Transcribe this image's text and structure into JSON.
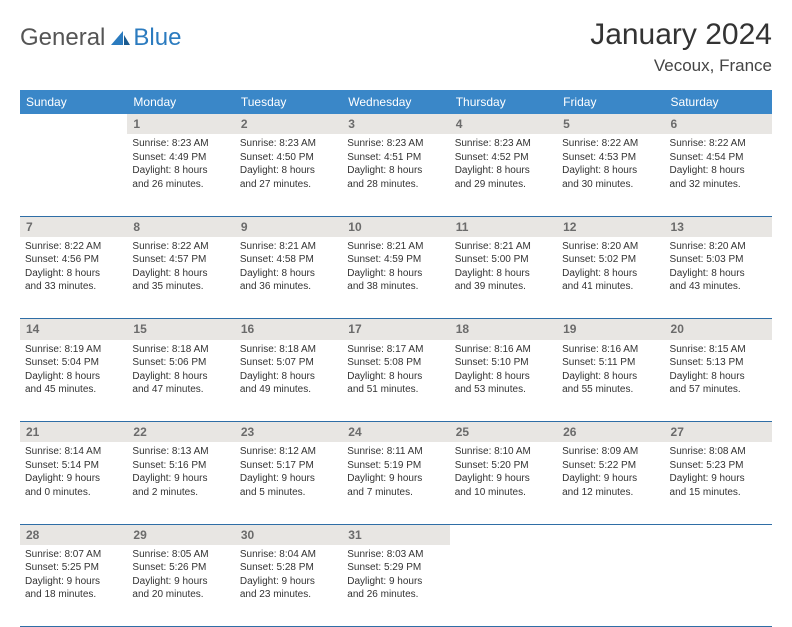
{
  "brand": {
    "part1": "General",
    "part2": "Blue"
  },
  "title": "January 2024",
  "location": "Vecoux, France",
  "colors": {
    "header_bg": "#3a87c8",
    "header_text": "#ffffff",
    "daynum_bg": "#e8e6e3",
    "daynum_text": "#6b6b6b",
    "rule": "#2f6ea6",
    "brand_blue": "#2b7bbf",
    "body_text": "#333333"
  },
  "weekdays": [
    "Sunday",
    "Monday",
    "Tuesday",
    "Wednesday",
    "Thursday",
    "Friday",
    "Saturday"
  ],
  "weeks": [
    {
      "nums": [
        "",
        "1",
        "2",
        "3",
        "4",
        "5",
        "6"
      ],
      "cells": [
        null,
        {
          "sr": "Sunrise: 8:23 AM",
          "ss": "Sunset: 4:49 PM",
          "d1": "Daylight: 8 hours",
          "d2": "and 26 minutes."
        },
        {
          "sr": "Sunrise: 8:23 AM",
          "ss": "Sunset: 4:50 PM",
          "d1": "Daylight: 8 hours",
          "d2": "and 27 minutes."
        },
        {
          "sr": "Sunrise: 8:23 AM",
          "ss": "Sunset: 4:51 PM",
          "d1": "Daylight: 8 hours",
          "d2": "and 28 minutes."
        },
        {
          "sr": "Sunrise: 8:23 AM",
          "ss": "Sunset: 4:52 PM",
          "d1": "Daylight: 8 hours",
          "d2": "and 29 minutes."
        },
        {
          "sr": "Sunrise: 8:22 AM",
          "ss": "Sunset: 4:53 PM",
          "d1": "Daylight: 8 hours",
          "d2": "and 30 minutes."
        },
        {
          "sr": "Sunrise: 8:22 AM",
          "ss": "Sunset: 4:54 PM",
          "d1": "Daylight: 8 hours",
          "d2": "and 32 minutes."
        }
      ]
    },
    {
      "nums": [
        "7",
        "8",
        "9",
        "10",
        "11",
        "12",
        "13"
      ],
      "cells": [
        {
          "sr": "Sunrise: 8:22 AM",
          "ss": "Sunset: 4:56 PM",
          "d1": "Daylight: 8 hours",
          "d2": "and 33 minutes."
        },
        {
          "sr": "Sunrise: 8:22 AM",
          "ss": "Sunset: 4:57 PM",
          "d1": "Daylight: 8 hours",
          "d2": "and 35 minutes."
        },
        {
          "sr": "Sunrise: 8:21 AM",
          "ss": "Sunset: 4:58 PM",
          "d1": "Daylight: 8 hours",
          "d2": "and 36 minutes."
        },
        {
          "sr": "Sunrise: 8:21 AM",
          "ss": "Sunset: 4:59 PM",
          "d1": "Daylight: 8 hours",
          "d2": "and 38 minutes."
        },
        {
          "sr": "Sunrise: 8:21 AM",
          "ss": "Sunset: 5:00 PM",
          "d1": "Daylight: 8 hours",
          "d2": "and 39 minutes."
        },
        {
          "sr": "Sunrise: 8:20 AM",
          "ss": "Sunset: 5:02 PM",
          "d1": "Daylight: 8 hours",
          "d2": "and 41 minutes."
        },
        {
          "sr": "Sunrise: 8:20 AM",
          "ss": "Sunset: 5:03 PM",
          "d1": "Daylight: 8 hours",
          "d2": "and 43 minutes."
        }
      ]
    },
    {
      "nums": [
        "14",
        "15",
        "16",
        "17",
        "18",
        "19",
        "20"
      ],
      "cells": [
        {
          "sr": "Sunrise: 8:19 AM",
          "ss": "Sunset: 5:04 PM",
          "d1": "Daylight: 8 hours",
          "d2": "and 45 minutes."
        },
        {
          "sr": "Sunrise: 8:18 AM",
          "ss": "Sunset: 5:06 PM",
          "d1": "Daylight: 8 hours",
          "d2": "and 47 minutes."
        },
        {
          "sr": "Sunrise: 8:18 AM",
          "ss": "Sunset: 5:07 PM",
          "d1": "Daylight: 8 hours",
          "d2": "and 49 minutes."
        },
        {
          "sr": "Sunrise: 8:17 AM",
          "ss": "Sunset: 5:08 PM",
          "d1": "Daylight: 8 hours",
          "d2": "and 51 minutes."
        },
        {
          "sr": "Sunrise: 8:16 AM",
          "ss": "Sunset: 5:10 PM",
          "d1": "Daylight: 8 hours",
          "d2": "and 53 minutes."
        },
        {
          "sr": "Sunrise: 8:16 AM",
          "ss": "Sunset: 5:11 PM",
          "d1": "Daylight: 8 hours",
          "d2": "and 55 minutes."
        },
        {
          "sr": "Sunrise: 8:15 AM",
          "ss": "Sunset: 5:13 PM",
          "d1": "Daylight: 8 hours",
          "d2": "and 57 minutes."
        }
      ]
    },
    {
      "nums": [
        "21",
        "22",
        "23",
        "24",
        "25",
        "26",
        "27"
      ],
      "cells": [
        {
          "sr": "Sunrise: 8:14 AM",
          "ss": "Sunset: 5:14 PM",
          "d1": "Daylight: 9 hours",
          "d2": "and 0 minutes."
        },
        {
          "sr": "Sunrise: 8:13 AM",
          "ss": "Sunset: 5:16 PM",
          "d1": "Daylight: 9 hours",
          "d2": "and 2 minutes."
        },
        {
          "sr": "Sunrise: 8:12 AM",
          "ss": "Sunset: 5:17 PM",
          "d1": "Daylight: 9 hours",
          "d2": "and 5 minutes."
        },
        {
          "sr": "Sunrise: 8:11 AM",
          "ss": "Sunset: 5:19 PM",
          "d1": "Daylight: 9 hours",
          "d2": "and 7 minutes."
        },
        {
          "sr": "Sunrise: 8:10 AM",
          "ss": "Sunset: 5:20 PM",
          "d1": "Daylight: 9 hours",
          "d2": "and 10 minutes."
        },
        {
          "sr": "Sunrise: 8:09 AM",
          "ss": "Sunset: 5:22 PM",
          "d1": "Daylight: 9 hours",
          "d2": "and 12 minutes."
        },
        {
          "sr": "Sunrise: 8:08 AM",
          "ss": "Sunset: 5:23 PM",
          "d1": "Daylight: 9 hours",
          "d2": "and 15 minutes."
        }
      ]
    },
    {
      "nums": [
        "28",
        "29",
        "30",
        "31",
        "",
        "",
        ""
      ],
      "cells": [
        {
          "sr": "Sunrise: 8:07 AM",
          "ss": "Sunset: 5:25 PM",
          "d1": "Daylight: 9 hours",
          "d2": "and 18 minutes."
        },
        {
          "sr": "Sunrise: 8:05 AM",
          "ss": "Sunset: 5:26 PM",
          "d1": "Daylight: 9 hours",
          "d2": "and 20 minutes."
        },
        {
          "sr": "Sunrise: 8:04 AM",
          "ss": "Sunset: 5:28 PM",
          "d1": "Daylight: 9 hours",
          "d2": "and 23 minutes."
        },
        {
          "sr": "Sunrise: 8:03 AM",
          "ss": "Sunset: 5:29 PM",
          "d1": "Daylight: 9 hours",
          "d2": "and 26 minutes."
        },
        null,
        null,
        null
      ]
    }
  ]
}
